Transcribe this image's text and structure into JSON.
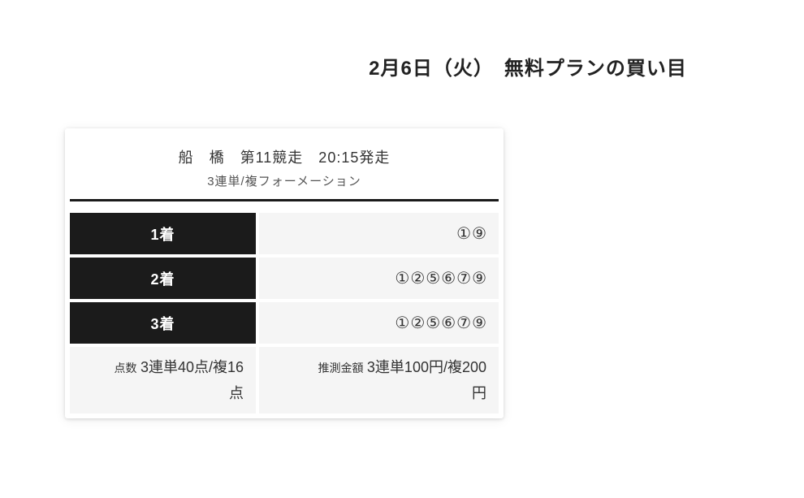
{
  "page": {
    "title": "2月6日（火）　無料プランの買い目"
  },
  "card": {
    "race_title": "船　橋　第11競走　20:15発走",
    "bet_type": "3連単/複フォーメーション",
    "rows": [
      {
        "label": "1着",
        "numbers": "①⑨"
      },
      {
        "label": "2着",
        "numbers": "①②⑤⑥⑦⑨"
      },
      {
        "label": "3着",
        "numbers": "①②⑤⑥⑦⑨"
      }
    ],
    "summary": {
      "points_label": "点数",
      "points_value": "3連単40点/複16点",
      "amount_label": "推測金額",
      "amount_value": "3連単100円/複200円"
    }
  },
  "colors": {
    "place_cell_bg": "#1b1b1b",
    "value_cell_bg": "#f5f5f5",
    "divider": "#1a1a1a",
    "title_text": "#222222",
    "body_text": "#333333"
  }
}
